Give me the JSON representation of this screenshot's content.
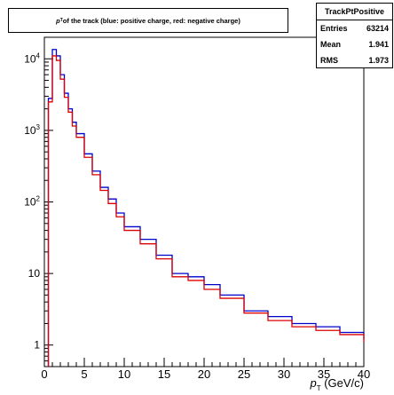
{
  "title": {
    "sym_main": "p",
    "sym_sub": "T",
    "rest": " of the track (blue: positive charge, red: negative charge)"
  },
  "stats": {
    "name": "TrackPtPositive",
    "rows": [
      {
        "label": "Entries",
        "value": "63214"
      },
      {
        "label": "Mean",
        "value": "1.941"
      },
      {
        "label": "RMS",
        "value": "1.973"
      }
    ]
  },
  "chart_data": {
    "type": "line",
    "title": "p_T of the track (blue: positive charge, red: negative charge)",
    "xlabel_main": "p",
    "xlabel_sub": "T",
    "xlabel_unit": "(GeV/c)",
    "xlim": [
      0,
      40
    ],
    "ylim": [
      0.5,
      20000
    ],
    "yscale": "log",
    "xticks": [
      0,
      5,
      10,
      15,
      20,
      25,
      30,
      35,
      40
    ],
    "yticks": [
      {
        "value": 1,
        "label": "1"
      },
      {
        "value": 10,
        "label": "10"
      },
      {
        "value": 100,
        "label": "10",
        "exp": "2"
      },
      {
        "value": 1000,
        "label": "10",
        "exp": "3"
      },
      {
        "value": 10000,
        "label": "10",
        "exp": "4"
      }
    ],
    "series": [
      {
        "color": "#0000cc",
        "x": [
          0.5,
          1.0,
          1.5,
          2.0,
          2.5,
          3.0,
          3.5,
          4.0,
          5.0,
          6.0,
          7.0,
          8.0,
          9.0,
          10.0,
          12.0,
          14.0,
          16.0,
          18.0,
          20.0,
          22.0,
          25.0,
          28.0,
          31.0,
          34.0,
          37.0,
          40.0
        ],
        "values": [
          2800,
          13500,
          11000,
          6000,
          3300,
          2000,
          1300,
          900,
          470,
          270,
          160,
          110,
          70,
          45,
          30,
          18,
          10,
          9,
          7,
          5,
          3,
          2.5,
          2,
          1.8,
          1.5,
          1.2
        ]
      },
      {
        "color": "#dd0000",
        "x": [
          0.5,
          1.0,
          1.5,
          2.0,
          2.5,
          3.0,
          3.5,
          4.0,
          5.0,
          6.0,
          7.0,
          8.0,
          9.0,
          10.0,
          12.0,
          14.0,
          16.0,
          18.0,
          20.0,
          22.0,
          25.0,
          28.0,
          31.0,
          34.0,
          37.0,
          40.0
        ],
        "values": [
          2500,
          11000,
          9500,
          5200,
          2900,
          1800,
          1150,
          800,
          420,
          240,
          145,
          95,
          62,
          40,
          26,
          16,
          9,
          8,
          6,
          4.5,
          2.8,
          2.2,
          1.8,
          1.6,
          1.4,
          1.1
        ]
      }
    ]
  }
}
